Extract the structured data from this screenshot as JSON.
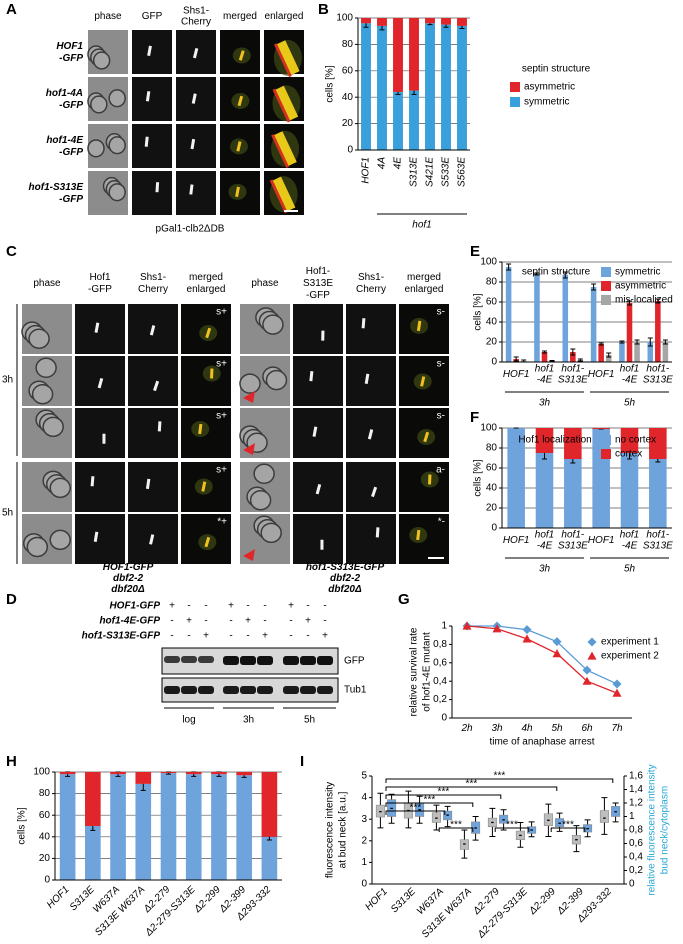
{
  "panel_a": {
    "label": "A",
    "columns": [
      "phase",
      "GFP",
      "Shs1- Cherry",
      "merged",
      "enlarged"
    ],
    "rows": [
      "HOF1 -GFP",
      "hof1-4A -GFP",
      "hof1-4E -GFP",
      "hof1-S313E -GFP"
    ],
    "caption": "pGal1-clb2ΔDB"
  },
  "panel_c": {
    "label": "C",
    "times": [
      "3h",
      "5h"
    ],
    "left": {
      "columns": [
        "phase",
        "Hof1 -GFP",
        "Shs1- Cherry",
        "merged enlarged"
      ],
      "annotations": [
        "s+",
        "s+",
        "s+",
        "s+",
        "*+"
      ],
      "caption": "HOF1-GFP dbf2-2 dbf20Δ"
    },
    "right": {
      "columns": [
        "phase",
        "Hof1- S313E -GFP",
        "Shs1- Cherry",
        "merged enlarged"
      ],
      "annotations": [
        "s-",
        "s-",
        "s-",
        "a-",
        "*-"
      ],
      "caption": "hof1-S313E-GFP dbf2-2 dbf20Δ"
    }
  },
  "panel_d": {
    "label": "D",
    "rows": [
      "HOF1-GFP",
      "hof1-4E-GFP",
      "hof1-S313E-GFP"
    ],
    "signs": [
      [
        "+",
        "-",
        "-",
        "+",
        "-",
        "-",
        "+",
        "-",
        "-"
      ],
      [
        "-",
        "+",
        "-",
        "-",
        "+",
        "-",
        "-",
        "+",
        "-"
      ],
      [
        "-",
        "-",
        "+",
        "-",
        "-",
        "+",
        "-",
        "-",
        "+"
      ]
    ],
    "bands": [
      "GFP",
      "Tub1"
    ],
    "conditions": [
      "log",
      "3h",
      "5h"
    ]
  },
  "chart_data": [
    {
      "panel": "B",
      "type": "bar",
      "stacked": true,
      "ylabel": "cells [%]",
      "categories": [
        "HOF1",
        "4A",
        "4E",
        "S313E",
        "S421E",
        "S533E",
        "S563E"
      ],
      "groups": [
        {
          "label": "hof1",
          "span": [
            1,
            6
          ]
        }
      ],
      "legend_title": "septin structure",
      "series": [
        {
          "name": "symmetric",
          "color": "#3aa0dc",
          "values": [
            96,
            94,
            44,
            45,
            96,
            95,
            94
          ],
          "errors": [
            3,
            3,
            2,
            3,
            1,
            2,
            2
          ]
        },
        {
          "name": "asymmetric",
          "color": "#e0262b",
          "values": [
            4,
            6,
            56,
            55,
            4,
            5,
            6
          ]
        }
      ],
      "ylim": [
        0,
        100
      ],
      "yticks": [
        0,
        20,
        40,
        60,
        80,
        100
      ],
      "grid": true
    },
    {
      "panel": "E",
      "type": "bar",
      "stacked": false,
      "ylabel": "cells [%]",
      "categories": [
        "HOF1",
        "hof1 -4E",
        "hof1- S313E",
        "HOF1",
        "hof1 -4E",
        "hof1- S313E"
      ],
      "groups": [
        {
          "label": "3h",
          "span": [
            0,
            2
          ]
        },
        {
          "label": "5h",
          "span": [
            3,
            5
          ]
        }
      ],
      "legend_title": "septin structure",
      "series": [
        {
          "name": "symmetric",
          "color": "#6fa3dc",
          "values": [
            95,
            88,
            87,
            75,
            20,
            20
          ],
          "errors": [
            3,
            1,
            3,
            3,
            1,
            4
          ]
        },
        {
          "name": "asymmetric",
          "color": "#e0262b",
          "values": [
            3,
            10,
            10,
            18,
            59,
            61
          ],
          "errors": [
            2,
            1,
            3,
            1,
            2,
            2
          ]
        },
        {
          "name": "mis-localized",
          "color": "#a6a6a6",
          "values": [
            1,
            1,
            2,
            7,
            20,
            20
          ],
          "errors": [
            1,
            0.5,
            1,
            2,
            2,
            2
          ]
        }
      ],
      "ylim": [
        0,
        100
      ],
      "yticks": [
        0,
        20,
        40,
        60,
        80,
        100
      ],
      "grid": true
    },
    {
      "panel": "F",
      "type": "bar",
      "stacked": true,
      "ylabel": "cells [%]",
      "categories": [
        "HOF1",
        "hof1 -4E",
        "hof1- S313E",
        "HOF1",
        "hof1 -4E",
        "hof1- S313E"
      ],
      "groups": [
        {
          "label": "3h",
          "span": [
            0,
            2
          ]
        },
        {
          "label": "5h",
          "span": [
            3,
            5
          ]
        }
      ],
      "legend_title": "Hof1 localization",
      "series": [
        {
          "name": "no cortex",
          "color": "#6fa3dc",
          "values": [
            100,
            75,
            69,
            99,
            75,
            69
          ],
          "errors": [
            0,
            6,
            4,
            0,
            6,
            3
          ]
        },
        {
          "name": "cortex",
          "color": "#e0262b",
          "values": [
            0,
            25,
            31,
            1,
            25,
            31
          ]
        }
      ],
      "ylim": [
        0,
        100
      ],
      "yticks": [
        0,
        20,
        40,
        60,
        80,
        100
      ],
      "grid": true
    },
    {
      "panel": "G",
      "type": "line",
      "ylabel": [
        "relative survival rate",
        "of hof1-4E mutant"
      ],
      "xlabel": "time of anaphase arrest",
      "categories": [
        "2h",
        "3h",
        "4h",
        "5h",
        "6h",
        "7h"
      ],
      "series": [
        {
          "name": "experiment 1",
          "color": "#5b9bd5",
          "marker": "diamond",
          "values": [
            1,
            1,
            0.96,
            0.83,
            0.52,
            0.37
          ]
        },
        {
          "name": "experiment 2",
          "color": "#e0262b",
          "marker": "triangle",
          "values": [
            1,
            0.97,
            0.86,
            0.7,
            0.4,
            0.27
          ]
        }
      ],
      "ylim": [
        0,
        1
      ],
      "yticks": [
        0,
        {
          "value": 0.2,
          "label": "0,2"
        },
        {
          "value": 0.4,
          "label": "0,4"
        },
        {
          "value": 0.6,
          "label": "0,6"
        },
        {
          "value": 0.8,
          "label": "0,8"
        },
        1
      ],
      "grid": false
    },
    {
      "panel": "H",
      "type": "bar",
      "stacked": true,
      "ylabel": "cells [%]",
      "categories": [
        "HOF1",
        "S313E",
        "W637A",
        "S313E W637A",
        "Δ2-279",
        "Δ2-279-S313E",
        "Δ2-299",
        "Δ2-399",
        "Δ293-332"
      ],
      "series": [
        {
          "name": "symmetric",
          "color": "#6fa3dc",
          "values": [
            98,
            50,
            98,
            89,
            99,
            98,
            98,
            97,
            40
          ],
          "errors": [
            2,
            4,
            2,
            6,
            1,
            2,
            2,
            2,
            3
          ]
        },
        {
          "name": "asymmetric",
          "color": "#e0262b",
          "values": [
            2,
            50,
            2,
            11,
            1,
            2,
            2,
            3,
            60
          ]
        }
      ],
      "ylim": [
        0,
        100
      ],
      "yticks": [
        0,
        20,
        40,
        60,
        80,
        100
      ],
      "grid": true
    },
    {
      "panel": "I",
      "type": "box",
      "ylabel": [
        "fluorescence intensity",
        "at bud neck [a.u.]"
      ],
      "y2label": [
        "relative fluorescence intensity",
        "bud neck/cytoplasm"
      ],
      "categories": [
        "HOF1",
        "S313E",
        "W637A",
        "S313E W637A",
        "Δ2-279",
        "Δ2-279-S313E",
        "Δ2-299",
        "Δ2-399",
        "Δ293-332"
      ],
      "series": [
        {
          "color": "#bdbdbd",
          "whislo": [
            2.6,
            2.6,
            2.5,
            1.2,
            2.2,
            1.7,
            2.2,
            1.5,
            2.3
          ],
          "q1": [
            3.1,
            3.05,
            2.85,
            1.6,
            2.65,
            2.05,
            2.7,
            1.85,
            2.85
          ],
          "median": [
            3.35,
            3.4,
            3.05,
            1.85,
            2.85,
            2.25,
            2.95,
            2.05,
            3.05
          ],
          "q3": [
            3.65,
            3.75,
            3.3,
            2.05,
            3.05,
            2.45,
            3.25,
            2.25,
            3.4
          ],
          "whishi": [
            4.2,
            4.3,
            3.65,
            2.5,
            3.5,
            2.85,
            3.7,
            2.7,
            4.0
          ]
        },
        {
          "color": "#6fa3dc",
          "axis": "y2",
          "whislo": [
            0.9,
            0.9,
            0.85,
            0.65,
            0.8,
            0.7,
            0.78,
            0.7,
            0.92
          ],
          "q1": [
            1.0,
            1.0,
            0.95,
            0.75,
            0.9,
            0.75,
            0.85,
            0.77,
            1.0
          ],
          "median": [
            1.12,
            1.1,
            1.02,
            0.83,
            0.95,
            0.8,
            0.9,
            0.82,
            1.07
          ],
          "q3": [
            1.25,
            1.2,
            1.08,
            0.92,
            1.02,
            0.85,
            0.97,
            0.88,
            1.15
          ],
          "whishi": [
            1.33,
            1.3,
            1.15,
            1.0,
            1.1,
            0.92,
            1.05,
            0.95,
            1.2
          ]
        }
      ],
      "comparisons": [
        {
          "from": 0,
          "to": 8,
          "label": "***"
        },
        {
          "from": 0,
          "to": 6,
          "label": "***"
        },
        {
          "from": 0,
          "to": 4,
          "label": "***"
        },
        {
          "from": 0,
          "to": 3,
          "label": "***"
        },
        {
          "from": 0,
          "to": 2,
          "label": "***"
        },
        {
          "from": 2,
          "to": 3,
          "label": "***"
        },
        {
          "from": 4,
          "to": 5,
          "label": "***"
        },
        {
          "from": 6,
          "to": 7,
          "label": "***"
        }
      ],
      "ylim": [
        0,
        5
      ],
      "yticks": [
        0,
        1,
        2,
        3,
        4,
        5
      ],
      "y2lim": [
        0,
        1.6
      ],
      "y2ticks": [
        0,
        {
          "value": 0.2,
          "label": "0,2"
        },
        {
          "value": 0.4,
          "label": "0,4"
        },
        {
          "value": 0.6,
          "label": "0,6"
        },
        {
          "value": 0.8,
          "label": "0,8"
        },
        1,
        {
          "value": 1.2,
          "label": "1,2"
        },
        {
          "value": 1.4,
          "label": "1,4"
        },
        {
          "value": 1.6,
          "label": "1,6"
        }
      ],
      "grid": false
    }
  ]
}
